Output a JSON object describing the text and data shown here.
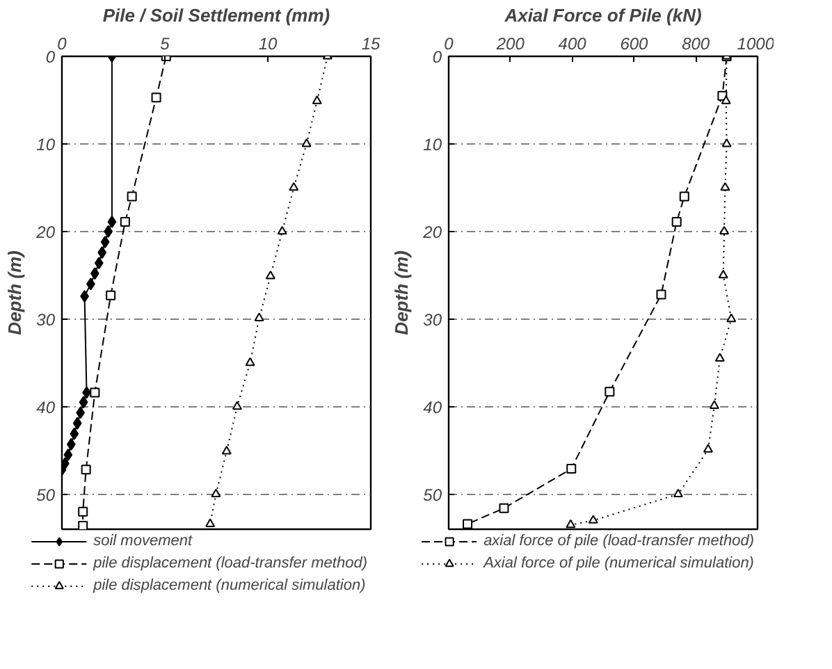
{
  "chart_data": [
    {
      "type": "line",
      "xlabel": "Pile / Soil Settlement (mm)",
      "ylabel": "Depth (m)",
      "xlim": [
        0,
        15
      ],
      "xticks": [
        0,
        5,
        10,
        15
      ],
      "ylim": [
        54,
        0
      ],
      "yticks": [
        0,
        10,
        20,
        30,
        40,
        50
      ],
      "grid": "y",
      "legend": "bottom",
      "series": [
        {
          "name": "soil movement",
          "color": "#000000",
          "marker": "diamond",
          "line_style": "solid",
          "x": [
            2.43,
            2.43,
            2.25,
            2.1,
            1.95,
            1.8,
            1.6,
            1.4,
            1.1,
            1.2,
            1.05,
            0.9,
            0.75,
            0.6,
            0.45,
            0.3,
            0.15,
            0.0
          ],
          "values": [
            0,
            18.9,
            20.0,
            21.2,
            22.4,
            23.6,
            24.8,
            26.0,
            27.4,
            38.4,
            39.5,
            40.7,
            41.9,
            43.1,
            44.3,
            45.5,
            46.5,
            47.2
          ]
        },
        {
          "name": "pile displacement (load-transfer method)",
          "color": "#000000",
          "marker": "square",
          "line_style": "dashed",
          "x": [
            5.06,
            4.58,
            3.4,
            3.07,
            2.37,
            1.6,
            1.17,
            1.02,
            1.02
          ],
          "values": [
            0,
            4.7,
            16.0,
            18.9,
            27.3,
            38.4,
            47.2,
            52.0,
            53.6
          ]
        },
        {
          "name": "pile displacement (numerical simulation)",
          "color": "#000000",
          "marker": "triangle",
          "line_style": "dotted",
          "x": [
            12.9,
            12.39,
            11.88,
            11.26,
            10.7,
            10.13,
            9.58,
            9.14,
            8.51,
            8.0,
            7.48,
            7.2
          ],
          "values": [
            0,
            5.1,
            10,
            15,
            20,
            25.1,
            29.9,
            35,
            40,
            45.1,
            50,
            53.4
          ]
        }
      ]
    },
    {
      "type": "line",
      "xlabel": "Axial Force of Pile (kN)",
      "ylabel": "Depth (m)",
      "xlim": [
        0,
        1000
      ],
      "xticks": [
        0,
        200,
        400,
        600,
        800,
        1000
      ],
      "ylim": [
        54,
        0
      ],
      "yticks": [
        0,
        10,
        20,
        30,
        40,
        50
      ],
      "grid": "y",
      "legend": "bottom",
      "series": [
        {
          "name": "axial force of pile (load-transfer method)",
          "color": "#000000",
          "marker": "square",
          "line_style": "dashed",
          "x": [
            900,
            886,
            763,
            738,
            688,
            521,
            397,
            179,
            61
          ],
          "values": [
            0,
            4.5,
            16.0,
            18.9,
            27.2,
            38.3,
            47.1,
            51.6,
            53.4
          ]
        },
        {
          "name": "Axial force of pile (numerical simulation)",
          "color": "#000000",
          "marker": "triangle",
          "line_style": "dotted",
          "x": [
            900,
            898,
            900,
            895,
            892,
            889,
            915,
            878,
            860,
            840,
            743,
            468,
            395
          ],
          "values": [
            0,
            5.1,
            10,
            15,
            20,
            25,
            30,
            34.5,
            39.9,
            44.9,
            50,
            53,
            53.5
          ]
        }
      ]
    }
  ]
}
